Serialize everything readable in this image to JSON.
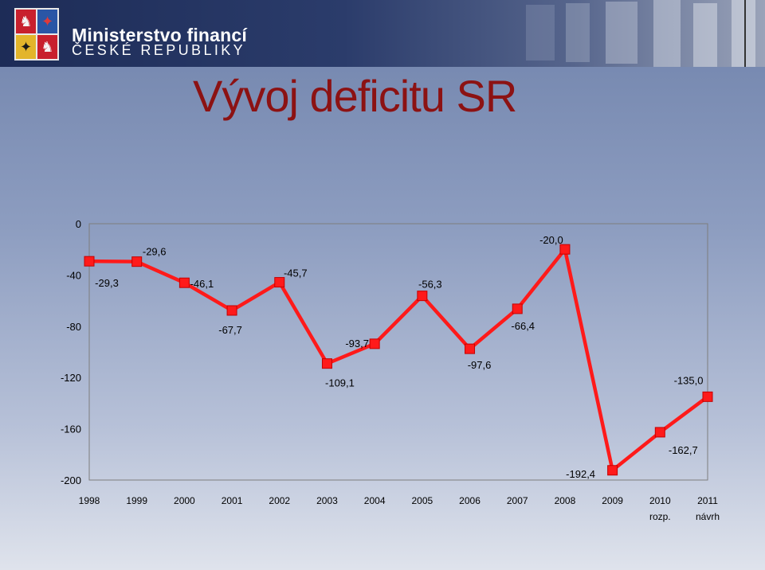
{
  "header": {
    "ministry_line1": "Ministerstvo financí",
    "ministry_line2": "ČESKÉ REPUBLIKY",
    "crest_icon": "czech-coat-of-arms-icon"
  },
  "chart_data": {
    "type": "line",
    "title": "Vývoj deficitu SR",
    "categories": [
      "1998",
      "1999",
      "2000",
      "2001",
      "2002",
      "2003",
      "2004",
      "2005",
      "2006",
      "2007",
      "2008",
      "2009",
      "2010",
      "2011"
    ],
    "category_sublabels": [
      "",
      "",
      "",
      "",
      "",
      "",
      "",
      "",
      "",
      "",
      "",
      "",
      "rozp.",
      "návrh"
    ],
    "values": [
      -29.3,
      -29.6,
      -46.1,
      -67.7,
      -45.7,
      -109.1,
      -93.7,
      -56.3,
      -97.6,
      -66.4,
      -20.0,
      -192.4,
      -162.7,
      -135.0
    ],
    "value_labels": [
      "-29,3",
      "-29,6",
      "-46,1",
      "-67,7",
      "-45,7",
      "-109,1",
      "-93,7",
      "-56,3",
      "-97,6",
      "-66,4",
      "-20,0",
      "-192,4",
      "-162,7",
      "-135,0"
    ],
    "ylim": [
      -200,
      0
    ],
    "yticks": [
      0,
      -40,
      -80,
      -120,
      -160,
      -200
    ],
    "ytick_labels": [
      "0",
      "-40",
      "-80",
      "-120",
      "-160",
      "-200"
    ],
    "line_color": "#ff1a1a",
    "marker_color": "#ff1a1a",
    "grid": false
  }
}
